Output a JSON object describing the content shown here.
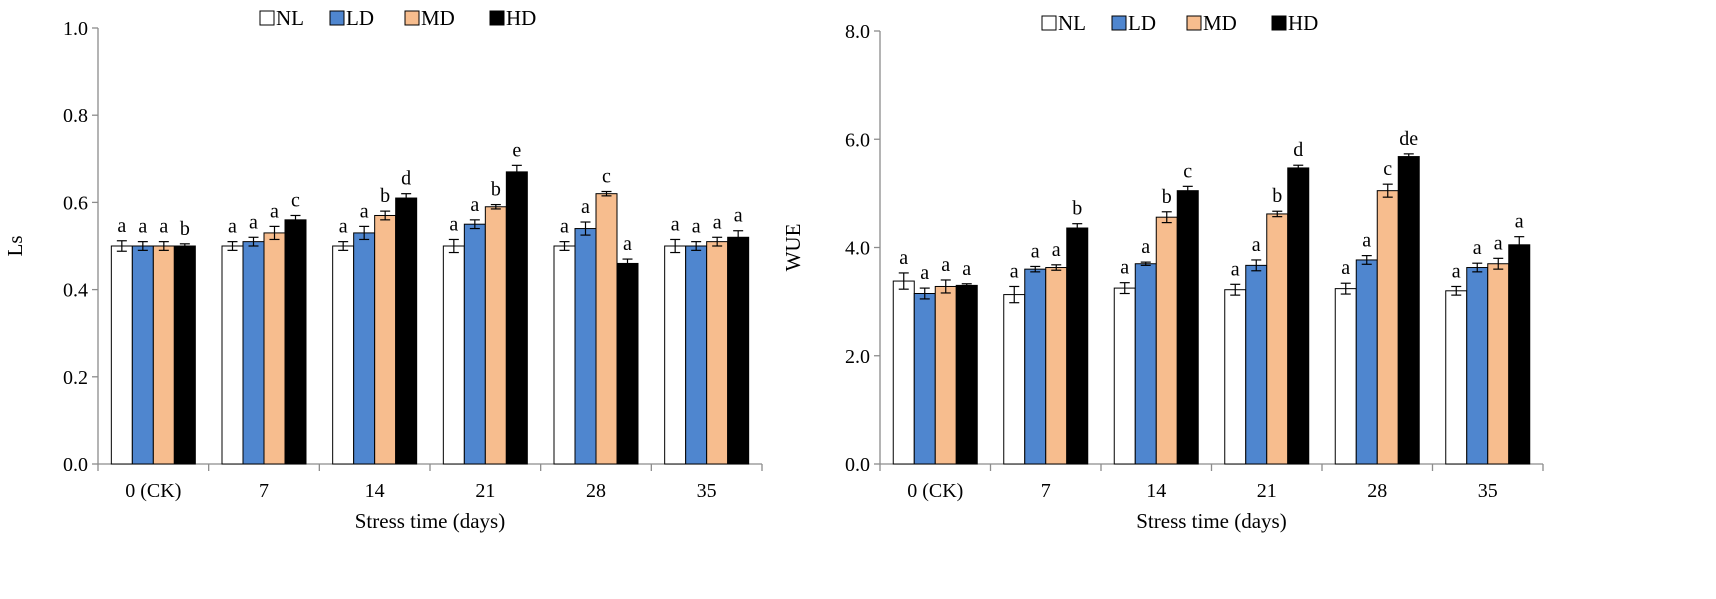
{
  "colors": {
    "NL": "#ffffff",
    "LD": "#4f86cf",
    "MD": "#f7bd8e",
    "HD": "#000000",
    "axis": "#8c8c8c",
    "bar_edge": "#000000"
  },
  "chart_data": [
    {
      "type": "bar",
      "categories": [
        "0 (CK)",
        "7",
        "14",
        "21",
        "28",
        "35"
      ],
      "xlabel": "Stress time (days)",
      "ylabel": "Ls",
      "ylim": [
        0,
        1.0
      ],
      "yticks": [
        "0.0",
        "0.2",
        "0.4",
        "0.6",
        "0.8",
        "1.0"
      ],
      "grid": false,
      "legend_position": "top-center",
      "series": [
        {
          "name": "NL",
          "values": [
            0.5,
            0.5,
            0.5,
            0.5,
            0.5,
            0.5
          ],
          "errors": [
            0.012,
            0.01,
            0.01,
            0.015,
            0.01,
            0.015
          ],
          "labels": [
            "a",
            "a",
            "a",
            "a",
            "a",
            "a"
          ]
        },
        {
          "name": "LD",
          "values": [
            0.5,
            0.51,
            0.53,
            0.55,
            0.54,
            0.5
          ],
          "errors": [
            0.01,
            0.01,
            0.015,
            0.01,
            0.015,
            0.01
          ],
          "labels": [
            "a",
            "a",
            "a",
            "a",
            "a",
            "a"
          ]
        },
        {
          "name": "MD",
          "values": [
            0.5,
            0.53,
            0.57,
            0.59,
            0.62,
            0.51
          ],
          "errors": [
            0.01,
            0.015,
            0.01,
            0.005,
            0.005,
            0.01
          ],
          "labels": [
            "a",
            "a",
            "b",
            "b",
            "c",
            "a"
          ]
        },
        {
          "name": "HD",
          "values": [
            0.5,
            0.56,
            0.61,
            0.67,
            0.46,
            0.52
          ],
          "errors": [
            0.005,
            0.01,
            0.01,
            0.015,
            0.01,
            0.015
          ],
          "labels": [
            "b",
            "c",
            "d",
            "e",
            "a",
            "a"
          ]
        }
      ]
    },
    {
      "type": "bar",
      "categories": [
        "0 (CK)",
        "7",
        "14",
        "21",
        "28",
        "35"
      ],
      "xlabel": "Stress time (days)",
      "ylabel": "WUE",
      "ylim": [
        0,
        8.0
      ],
      "yticks": [
        "0.0",
        "2.0",
        "4.0",
        "6.0",
        "8.0"
      ],
      "grid": false,
      "legend_position": "top-center",
      "series": [
        {
          "name": "NL",
          "values": [
            3.38,
            3.13,
            3.25,
            3.22,
            3.24,
            3.2
          ],
          "errors": [
            0.15,
            0.15,
            0.1,
            0.1,
            0.1,
            0.08
          ],
          "labels": [
            "a",
            "a",
            "a",
            "a",
            "a",
            "a"
          ]
        },
        {
          "name": "LD",
          "values": [
            3.15,
            3.6,
            3.7,
            3.67,
            3.77,
            3.63
          ],
          "errors": [
            0.1,
            0.05,
            0.03,
            0.1,
            0.08,
            0.08
          ],
          "labels": [
            "a",
            "a",
            "a",
            "a",
            "a",
            "a"
          ]
        },
        {
          "name": "MD",
          "values": [
            3.28,
            3.63,
            4.56,
            4.62,
            5.05,
            3.7
          ],
          "errors": [
            0.12,
            0.05,
            0.1,
            0.05,
            0.12,
            0.1
          ],
          "labels": [
            "a",
            "a",
            "b",
            "b",
            "c",
            "a"
          ]
        },
        {
          "name": "HD",
          "values": [
            3.3,
            4.36,
            5.05,
            5.47,
            5.68,
            4.05
          ],
          "errors": [
            0.03,
            0.08,
            0.08,
            0.05,
            0.05,
            0.15
          ],
          "labels": [
            "a",
            "b",
            "c",
            "d",
            "de",
            "a"
          ]
        }
      ]
    }
  ]
}
